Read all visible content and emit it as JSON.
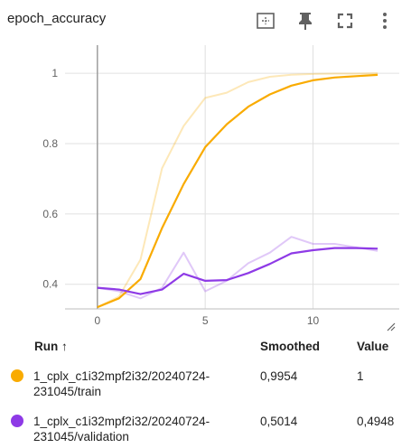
{
  "panel": {
    "title": "epoch_accuracy"
  },
  "toolbar": {
    "icons": [
      "fit-domain-icon",
      "pin-icon",
      "fullscreen-icon",
      "more-vert-icon"
    ]
  },
  "chart_data": {
    "type": "line",
    "x_ticks": [
      "0",
      "5",
      "10"
    ],
    "y_ticks": [
      "0.4",
      "0.6",
      "0.8",
      "1"
    ],
    "xlim": [
      -1.5,
      14
    ],
    "ylim": [
      0.33,
      1.08
    ],
    "grid": true,
    "series": [
      {
        "name": "1_cplx_c1i32mpf2i32/20240724-231045/train",
        "color": "#f9ab00",
        "raw": {
          "x": [
            0,
            1,
            2,
            3,
            4,
            5,
            6,
            7,
            8,
            9,
            10,
            11,
            12,
            13
          ],
          "y": [
            0.335,
            0.365,
            0.47,
            0.73,
            0.85,
            0.93,
            0.945,
            0.975,
            0.99,
            0.996,
            0.998,
            0.999,
            0.999,
            1.0
          ]
        },
        "smoothed": {
          "x": [
            0,
            1,
            2,
            3,
            4,
            5,
            6,
            7,
            8,
            9,
            10,
            11,
            12,
            13
          ],
          "y": [
            0.335,
            0.36,
            0.415,
            0.56,
            0.685,
            0.79,
            0.855,
            0.905,
            0.94,
            0.965,
            0.98,
            0.988,
            0.992,
            0.9954
          ]
        }
      },
      {
        "name": "1_cplx_c1i32mpf2i32/20240724-231045/validation",
        "color": "#8e3ae6",
        "raw": {
          "x": [
            0,
            1,
            2,
            3,
            4,
            5,
            6,
            7,
            8,
            9,
            10,
            11,
            12,
            13
          ],
          "y": [
            0.39,
            0.38,
            0.36,
            0.39,
            0.49,
            0.38,
            0.41,
            0.46,
            0.49,
            0.535,
            0.515,
            0.515,
            0.505,
            0.4948
          ]
        },
        "smoothed": {
          "x": [
            0,
            1,
            2,
            3,
            4,
            5,
            6,
            7,
            8,
            9,
            10,
            11,
            12,
            13
          ],
          "y": [
            0.39,
            0.385,
            0.372,
            0.385,
            0.43,
            0.41,
            0.412,
            0.432,
            0.458,
            0.488,
            0.497,
            0.503,
            0.503,
            0.5014
          ]
        }
      }
    ]
  },
  "legend": {
    "headers": {
      "run": "Run ↑",
      "smoothed": "Smoothed",
      "value": "Value"
    },
    "rows": [
      {
        "run": "1_cplx_c1i32mpf2i32/20240724-231045/train",
        "smoothed": "0,9954",
        "value": "1",
        "color": "#f9ab00"
      },
      {
        "run": "1_cplx_c1i32mpf2i32/20240724-231045/validation",
        "smoothed": "0,5014",
        "value": "0,4948",
        "color": "#8e3ae6"
      }
    ]
  }
}
